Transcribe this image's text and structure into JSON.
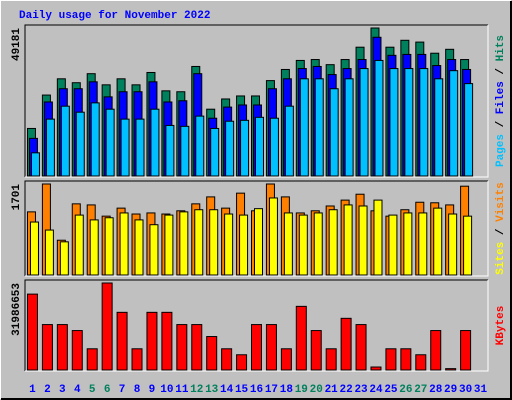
{
  "chart_data": [
    {
      "type": "bar",
      "title": "Daily usage for November 2022",
      "title_color": "#0000FF",
      "legend_separator": " / ",
      "series": [
        {
          "name": "Hits",
          "color": "#00805C",
          "values": [
            15800,
            26900,
            32300,
            31000,
            34000,
            30300,
            32300,
            30300,
            34400,
            28300,
            28000,
            36400,
            22200,
            25600,
            26600,
            26600,
            31700,
            35400,
            38400,
            38700,
            37000,
            38700,
            42800,
            49181,
            42800,
            45100,
            44500,
            40800,
            42100,
            38700,
            null
          ]
        },
        {
          "name": "Files",
          "color": "#0000FF",
          "values": [
            12500,
            24600,
            29000,
            29000,
            31300,
            26300,
            28000,
            28000,
            31300,
            24600,
            25000,
            34000,
            19200,
            22900,
            23600,
            23600,
            29000,
            32300,
            35700,
            36400,
            33700,
            35700,
            38700,
            46100,
            40100,
            40400,
            40400,
            36700,
            38700,
            35400,
            null
          ]
        },
        {
          "name": "Pages",
          "color": "#00C0FF",
          "values": [
            7700,
            18900,
            23200,
            21200,
            24300,
            22200,
            18900,
            18900,
            22200,
            16800,
            16500,
            19900,
            15800,
            18200,
            18500,
            19500,
            19200,
            23200,
            32300,
            32300,
            29000,
            32300,
            35700,
            38400,
            35700,
            35700,
            35700,
            32300,
            35000,
            30700,
            null
          ]
        }
      ],
      "ylim": [
        0,
        49181
      ],
      "yticks": [
        49181
      ]
    },
    {
      "type": "bar",
      "legend_separator": " / ",
      "series": [
        {
          "name": "Visits",
          "color": "#FF8000",
          "values": [
            1180,
            1701,
            650,
            1330,
            1310,
            1100,
            1250,
            1140,
            1160,
            1140,
            1200,
            1330,
            1460,
            1250,
            1530,
            1200,
            1701,
            1460,
            1160,
            1200,
            1290,
            1400,
            1510,
            1200,
            1100,
            1220,
            1360,
            1350,
            1310,
            1660,
            null
          ]
        },
        {
          "name": "Sites",
          "color": "#FFFF00",
          "values": [
            990,
            840,
            620,
            1120,
            1030,
            1070,
            1160,
            1030,
            940,
            1120,
            1180,
            1220,
            1220,
            1140,
            1120,
            1240,
            1440,
            1160,
            1120,
            1160,
            1220,
            1310,
            1290,
            1400,
            1120,
            1160,
            1160,
            1250,
            1140,
            1100,
            null
          ]
        }
      ],
      "ylim": [
        0,
        1701
      ],
      "yticks": [
        1701
      ]
    },
    {
      "type": "bar",
      "categories": [
        "1",
        "2",
        "3",
        "4",
        "5",
        "6",
        "7",
        "8",
        "9",
        "10",
        "11",
        "12",
        "13",
        "14",
        "15",
        "16",
        "17",
        "18",
        "19",
        "20",
        "21",
        "22",
        "23",
        "24",
        "25",
        "26",
        "27",
        "28",
        "29",
        "30",
        "31"
      ],
      "category_colors": [
        "#0000FF",
        "#0000FF",
        "#0000FF",
        "#0000FF",
        "#00805C",
        "#00805C",
        "#0000FF",
        "#0000FF",
        "#0000FF",
        "#0000FF",
        "#0000FF",
        "#00805C",
        "#00805C",
        "#0000FF",
        "#0000FF",
        "#0000FF",
        "#0000FF",
        "#0000FF",
        "#00805C",
        "#00805C",
        "#0000FF",
        "#0000FF",
        "#0000FF",
        "#0000FF",
        "#0000FF",
        "#00805C",
        "#00805C",
        "#0000FF",
        "#0000FF",
        "#0000FF",
        "#0000FF"
      ],
      "series": [
        {
          "name": "KBytes",
          "color": "#FF0000",
          "values": [
            27900000,
            16700000,
            16700000,
            14500000,
            7800000,
            31986653,
            21200000,
            7800000,
            21200000,
            21200000,
            16700000,
            16700000,
            12300000,
            7800000,
            5600000,
            16700000,
            16700000,
            7800000,
            23400000,
            14500000,
            7800000,
            19000000,
            16700000,
            1100000,
            7800000,
            7800000,
            5600000,
            14500000,
            500000,
            14500000,
            null
          ]
        }
      ],
      "ylim": [
        0,
        31986653
      ],
      "yticks": [
        31986653
      ]
    }
  ]
}
